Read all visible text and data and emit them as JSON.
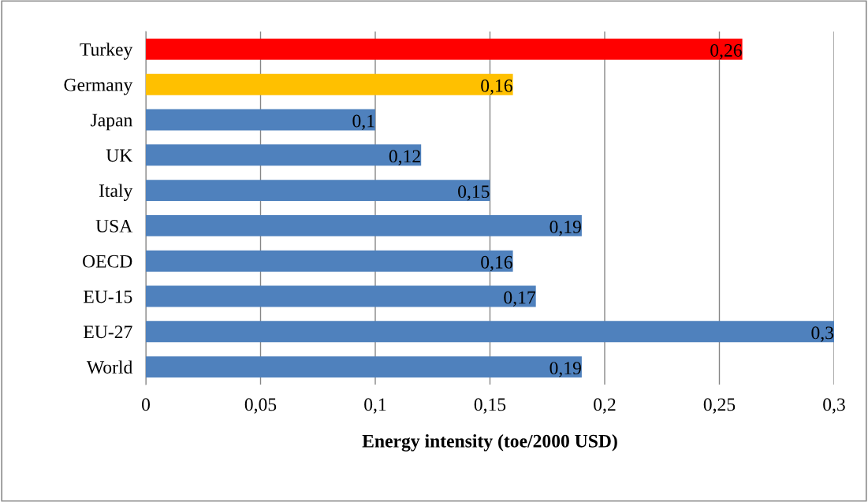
{
  "chart_data": {
    "type": "bar",
    "orientation": "horizontal",
    "xlabel": "Energy intensity (toe/2000 USD)",
    "categories": [
      "Turkey",
      "Germany",
      "Japan",
      "UK",
      "Italy",
      "USA",
      "OECD",
      "EU-15",
      "EU-27",
      "World"
    ],
    "values": [
      0.26,
      0.16,
      0.1,
      0.12,
      0.15,
      0.19,
      0.16,
      0.17,
      0.3,
      0.19
    ],
    "colors": [
      "#ff0000",
      "#ffc000",
      "#4f81bd",
      "#4f81bd",
      "#4f81bd",
      "#4f81bd",
      "#4f81bd",
      "#4f81bd",
      "#4f81bd",
      "#4f81bd"
    ],
    "value_labels": [
      "0,26",
      "0,16",
      "0,1",
      "0,12",
      "0,15",
      "0,19",
      "0,16",
      "0,17",
      "0,3",
      "0,19"
    ],
    "xlim": [
      0,
      0.3
    ],
    "xticks": [
      0,
      {
        "value": 0.05,
        "label": "0,05"
      },
      {
        "value": 0.1,
        "label": "0,1"
      },
      {
        "value": 0.15,
        "label": "0,15"
      },
      {
        "value": 0.2,
        "label": "0,2"
      },
      {
        "value": 0.25,
        "label": "0,25"
      },
      {
        "value": 0.3,
        "label": "0,3"
      }
    ],
    "grid": "x"
  }
}
